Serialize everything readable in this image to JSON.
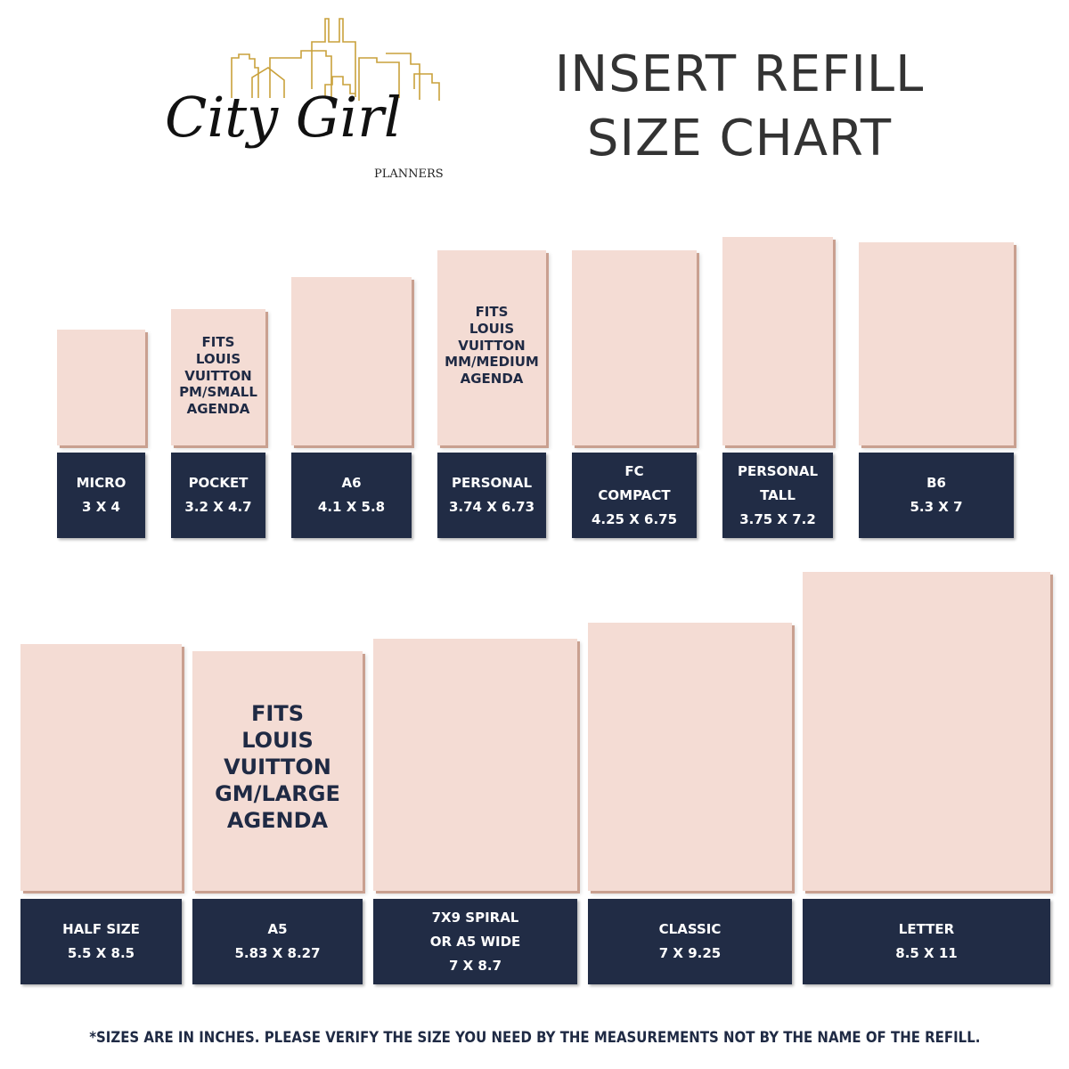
{
  "logo": {
    "text": "City Girl",
    "subtext": "PLANNERS",
    "skyline_color": "#c9a13b"
  },
  "header": {
    "title_line1": "INSERT REFILL",
    "title_line2": "SIZE CHART"
  },
  "colors": {
    "paper": "#f4dcd4",
    "label_bg": "#212c45",
    "note_text": "#1f2a44"
  },
  "sizes": [
    {
      "name": "MICRO",
      "dims": "3 X 4",
      "note": ""
    },
    {
      "name": "POCKET",
      "dims": "3.2 X 4.7",
      "note": "FITS\nLOUIS\nVUITTON\nPM/SMALL\nAGENDA"
    },
    {
      "name": "A6",
      "dims": "4.1 X 5.8",
      "note": ""
    },
    {
      "name": "PERSONAL",
      "dims": "3.74 X 6.73",
      "note": "FITS\nLOUIS\nVUITTON\nMM/MEDIUM\nAGENDA"
    },
    {
      "name": "FC\nCOMPACT",
      "dims": "4.25 X 6.75",
      "note": ""
    },
    {
      "name": "PERSONAL\nTALL",
      "dims": "3.75 X 7.2",
      "note": ""
    },
    {
      "name": "B6",
      "dims": "5.3 X 7",
      "note": ""
    },
    {
      "name": "HALF SIZE",
      "dims": "5.5 X 8.5",
      "note": ""
    },
    {
      "name": "A5",
      "dims": "5.83 X 8.27",
      "note": "FITS\nLOUIS\nVUITTON\nGM/LARGE\nAGENDA"
    },
    {
      "name": "7X9 SPIRAL\nOR A5 WIDE",
      "dims": "7 X 8.7",
      "note": ""
    },
    {
      "name": "CLASSIC",
      "dims": "7 X 9.25",
      "note": ""
    },
    {
      "name": "LETTER",
      "dims": "8.5 X 11",
      "note": ""
    }
  ],
  "footnote": "*SIZES ARE IN INCHES. PLEASE VERIFY THE SIZE YOU NEED BY THE MEASUREMENTS NOT BY THE NAME OF THE REFILL."
}
